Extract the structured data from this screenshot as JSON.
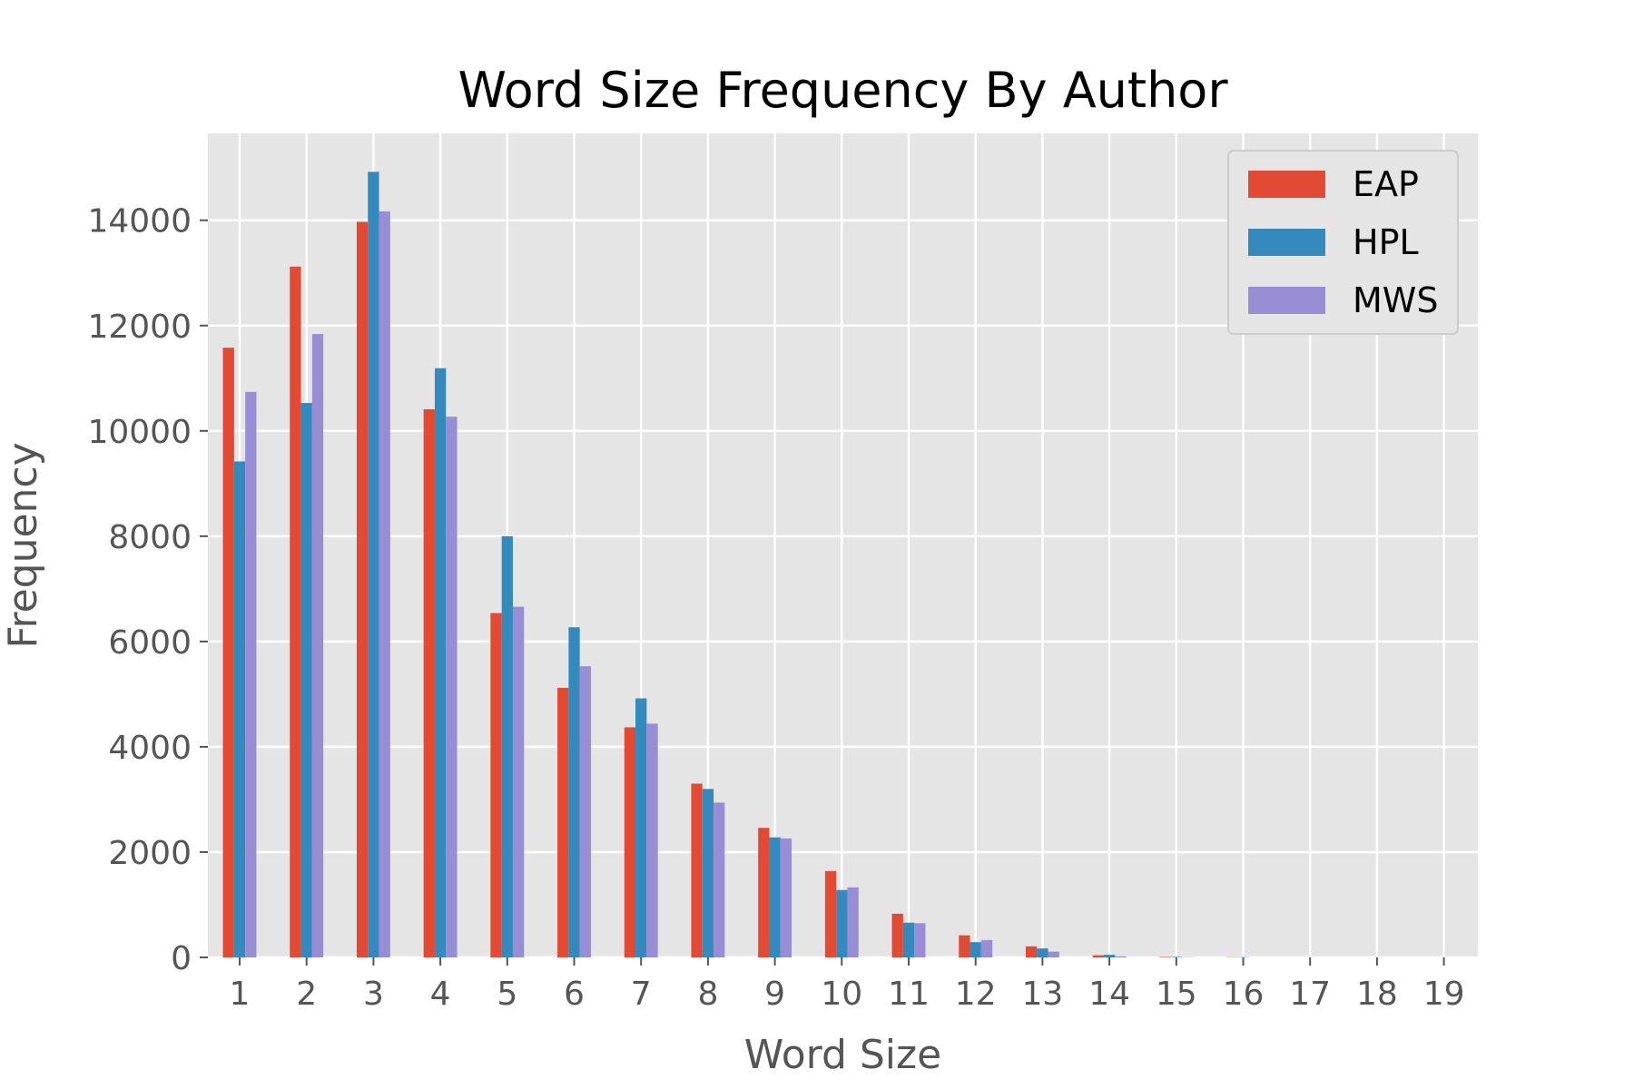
{
  "chart_data": {
    "type": "bar",
    "title": "Word Size Frequency By Author",
    "xlabel": "Word Size",
    "ylabel": "Frequency",
    "categories": [
      "1",
      "2",
      "3",
      "4",
      "5",
      "6",
      "7",
      "8",
      "9",
      "10",
      "11",
      "12",
      "13",
      "14",
      "15",
      "16",
      "17",
      "18",
      "19"
    ],
    "series": [
      {
        "name": "EAP",
        "color": "#e24a33",
        "values": [
          11580,
          13120,
          13970,
          10410,
          6540,
          5120,
          4370,
          3300,
          2460,
          1640,
          830,
          420,
          210,
          40,
          10,
          5,
          0,
          0,
          0
        ]
      },
      {
        "name": "HPL",
        "color": "#348abd",
        "values": [
          9420,
          10530,
          14920,
          11190,
          8000,
          6270,
          4920,
          3200,
          2280,
          1280,
          660,
          290,
          170,
          50,
          10,
          5,
          0,
          0,
          0
        ]
      },
      {
        "name": "MWS",
        "color": "#988ed5",
        "values": [
          10740,
          11840,
          14170,
          10270,
          6660,
          5530,
          4440,
          2940,
          2260,
          1330,
          650,
          330,
          110,
          20,
          5,
          0,
          0,
          0,
          0
        ]
      }
    ],
    "ylim": [
      0,
      15650
    ],
    "yticks": [
      0,
      2000,
      4000,
      6000,
      8000,
      10000,
      12000,
      14000
    ],
    "grid": true,
    "legend": "top-right",
    "style": {
      "background": "#e5e5e5",
      "grid_color": "#ffffff"
    }
  }
}
